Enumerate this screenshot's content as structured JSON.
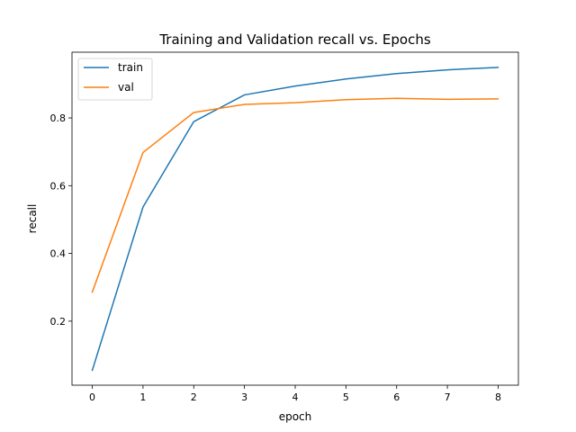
{
  "chart_data": {
    "type": "line",
    "title": "Training and Validation recall vs. Epochs",
    "xlabel": "epoch",
    "ylabel": "recall",
    "x": [
      0,
      1,
      2,
      3,
      4,
      5,
      6,
      7,
      8
    ],
    "series": [
      {
        "name": "train",
        "color": "#1f77b4",
        "values": [
          0.055,
          0.537,
          0.789,
          0.868,
          0.894,
          0.915,
          0.931,
          0.942,
          0.949
        ]
      },
      {
        "name": "val",
        "color": "#ff7f0e",
        "values": [
          0.286,
          0.698,
          0.816,
          0.84,
          0.845,
          0.854,
          0.858,
          0.855,
          0.856
        ]
      }
    ],
    "xlim": [
      -0.4,
      8.4
    ],
    "ylim": [
      0.011,
      0.994
    ],
    "xticks": [
      "0",
      "1",
      "2",
      "3",
      "4",
      "5",
      "6",
      "7",
      "8"
    ],
    "yticks": [
      "0.2",
      "0.4",
      "0.6",
      "0.8"
    ],
    "grid": false,
    "legend_position": "upper-left"
  }
}
